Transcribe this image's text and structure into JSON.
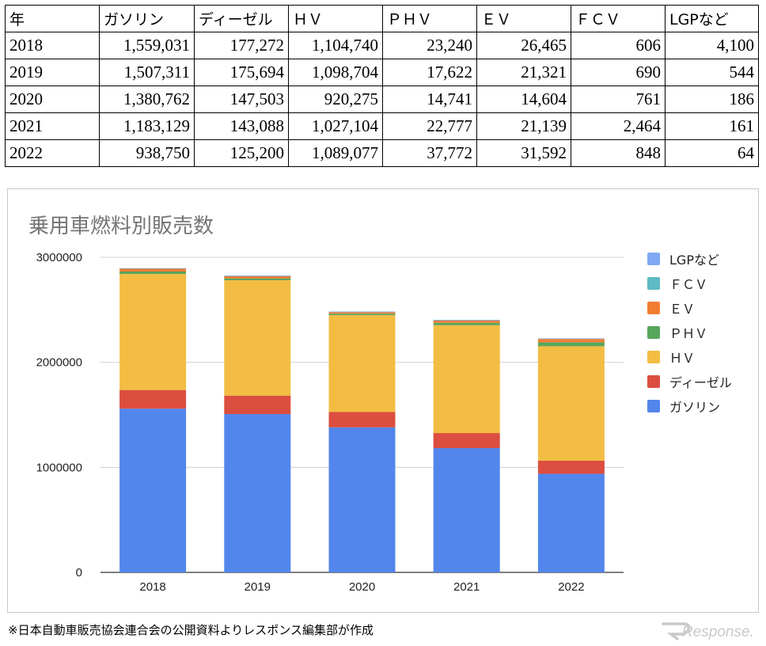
{
  "table": {
    "headers": [
      "年",
      "ガソリン",
      "ディーゼル",
      "ＨＶ",
      "ＰＨＶ",
      "ＥＶ",
      "ＦＣＶ",
      "LGPなど"
    ],
    "rows": [
      [
        "2018",
        "1,559,031",
        "177,272",
        "1,104,740",
        "23,240",
        "26,465",
        "606",
        "4,100"
      ],
      [
        "2019",
        "1,507,311",
        "175,694",
        "1,098,704",
        "17,622",
        "21,321",
        "690",
        "544"
      ],
      [
        "2020",
        "1,380,762",
        "147,503",
        "920,275",
        "14,741",
        "14,604",
        "761",
        "186"
      ],
      [
        "2021",
        "1,183,129",
        "143,088",
        "1,027,104",
        "22,777",
        "21,139",
        "2,464",
        "161"
      ],
      [
        "2022",
        "938,750",
        "125,200",
        "1,089,077",
        "37,772",
        "31,592",
        "848",
        "64"
      ]
    ]
  },
  "chart_data": {
    "type": "bar",
    "stacked": true,
    "title": "乗用車燃料別販売数",
    "categories": [
      "2018",
      "2019",
      "2020",
      "2021",
      "2022"
    ],
    "y_ticks": [
      "0",
      "1000000",
      "2000000",
      "3000000"
    ],
    "ylim": [
      0,
      3000000
    ],
    "grid": true,
    "legend_position": "right",
    "series": [
      {
        "name": "ガソリン",
        "color": "#5286ec",
        "values": [
          1559031,
          1507311,
          1380762,
          1183129,
          938750
        ]
      },
      {
        "name": "ディーゼル",
        "color": "#dc4e3f",
        "values": [
          177272,
          175694,
          147503,
          143088,
          125200
        ]
      },
      {
        "name": "ＨＶ",
        "color": "#f2bd42",
        "values": [
          1104740,
          1098704,
          920275,
          1027104,
          1089077
        ]
      },
      {
        "name": "ＰＨＶ",
        "color": "#58a55c",
        "values": [
          23240,
          17622,
          14741,
          22777,
          37772
        ]
      },
      {
        "name": "ＥＶ",
        "color": "#f17d33",
        "values": [
          26465,
          21321,
          14604,
          21139,
          31592
        ]
      },
      {
        "name": "ＦＣＶ",
        "color": "#5ebac3",
        "values": [
          606,
          690,
          761,
          2464,
          848
        ]
      },
      {
        "name": "LGPなど",
        "color": "#7fa9f2",
        "values": [
          4100,
          544,
          186,
          161,
          64
        ]
      }
    ]
  },
  "footnote": "※日本自動車販売協会連合会の公開資料よりレスポンス編集部が作成",
  "watermark": "Response."
}
